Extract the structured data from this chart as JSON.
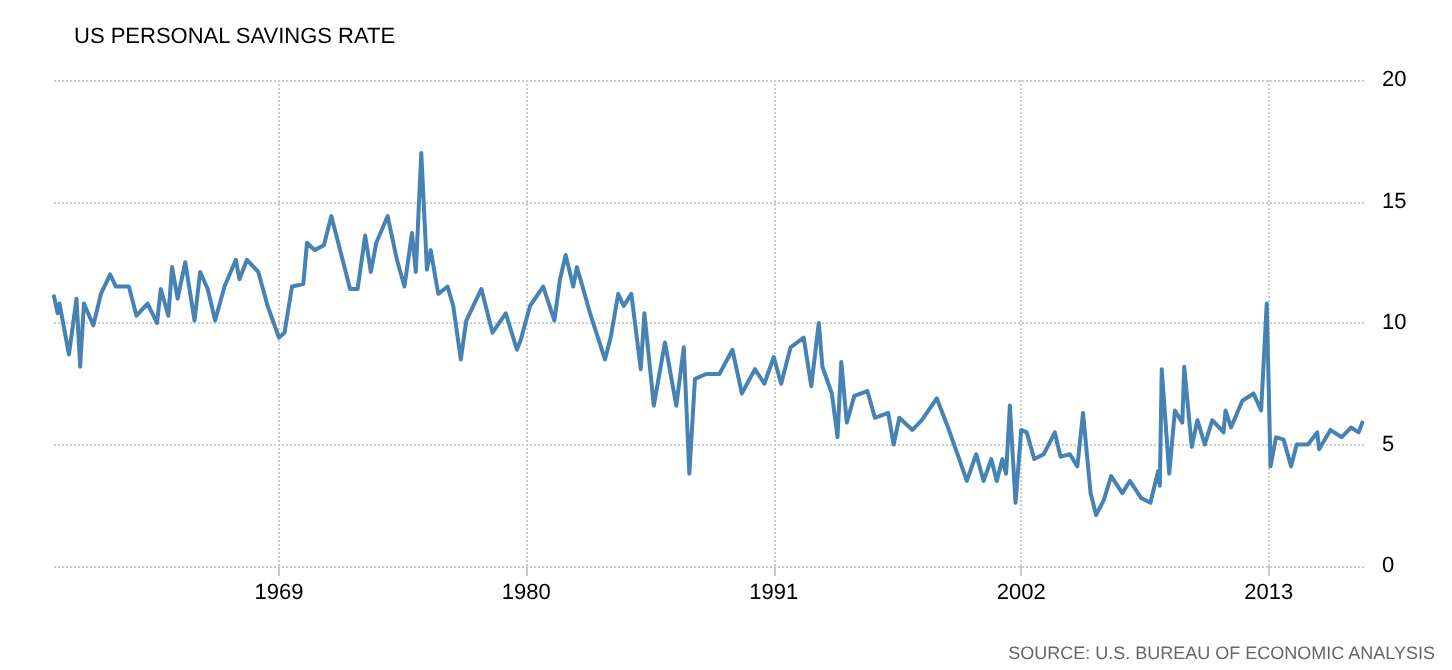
{
  "chart_data": {
    "type": "line",
    "title": "US PERSONAL SAVINGS RATE",
    "annotations": [
      "SOURCE: U.S. BUREAU OF ECONOMIC ANALYSIS"
    ],
    "x": [
      "1959-01",
      "1959-03",
      "1959-04",
      "1959-09",
      "1960-01",
      "1960-03",
      "1960-05",
      "1960-10",
      "1961-02",
      "1961-07",
      "1961-10",
      "1962-05",
      "1962-09",
      "1963-03",
      "1963-08",
      "1963-10",
      "1964-02",
      "1964-04",
      "1964-07",
      "1964-11",
      "1965-04",
      "1965-07",
      "1965-11",
      "1966-03",
      "1966-08",
      "1967-02",
      "1967-04",
      "1967-08",
      "1968-02",
      "1968-07",
      "1969-01",
      "1969-04",
      "1969-08",
      "1970-02",
      "1970-04",
      "1970-08",
      "1971-01",
      "1971-05",
      "1971-10",
      "1972-03",
      "1972-07",
      "1972-11",
      "1973-02",
      "1973-05",
      "1973-11",
      "1974-04",
      "1974-08",
      "1974-12",
      "1975-02",
      "1975-05",
      "1975-08",
      "1975-10",
      "1976-02",
      "1976-07",
      "1976-10",
      "1977-02",
      "1977-05",
      "1978-01",
      "1978-07",
      "1979-02",
      "1979-08",
      "1979-10",
      "1980-03",
      "1980-10",
      "1981-04",
      "1981-07",
      "1981-10",
      "1982-02",
      "1982-04",
      "1982-07",
      "1982-11",
      "1983-07",
      "1983-10",
      "1984-02",
      "1984-05",
      "1984-09",
      "1985-02",
      "1985-04",
      "1985-09",
      "1986-03",
      "1986-09",
      "1987-01",
      "1987-04",
      "1987-07",
      "1988-01",
      "1988-08",
      "1989-03",
      "1989-08",
      "1990-03",
      "1990-08",
      "1991-01",
      "1991-05",
      "1991-10",
      "1992-05",
      "1992-09",
      "1993-01",
      "1993-03",
      "1993-08",
      "1993-11",
      "1994-01",
      "1994-04",
      "1994-08",
      "1995-03",
      "1995-07",
      "1996-02",
      "1996-05",
      "1996-08",
      "1997-03",
      "1997-08",
      "1998-04",
      "1998-10",
      "1999-04",
      "1999-08",
      "2000-01",
      "2000-05",
      "2000-09",
      "2000-12",
      "2001-03",
      "2001-05",
      "2001-07",
      "2001-10",
      "2002-01",
      "2002-04",
      "2002-08",
      "2003-01",
      "2003-07",
      "2003-10",
      "2004-03",
      "2004-07",
      "2004-10",
      "2005-02",
      "2005-05",
      "2005-09",
      "2006-01",
      "2006-07",
      "2006-11",
      "2007-05",
      "2007-10",
      "2008-02",
      "2008-03",
      "2008-04",
      "2008-08",
      "2008-11",
      "2009-03",
      "2009-04",
      "2009-08",
      "2009-11",
      "2010-03",
      "2010-07",
      "2011-01",
      "2011-02",
      "2011-05",
      "2011-11",
      "2012-05",
      "2012-09",
      "2012-12",
      "2013-02",
      "2013-05",
      "2013-09",
      "2014-01",
      "2014-04",
      "2014-10",
      "2015-03",
      "2015-04",
      "2015-10",
      "2016-04",
      "2016-09",
      "2017-01",
      "2017-03"
    ],
    "series": [
      {
        "color": "#4682b4",
        "values": [
          11.1,
          10.4,
          10.8,
          8.7,
          11.0,
          8.2,
          10.8,
          9.9,
          11.2,
          12.0,
          11.5,
          11.5,
          10.3,
          10.8,
          10.0,
          11.4,
          10.3,
          12.3,
          11.0,
          12.5,
          10.1,
          12.1,
          11.4,
          10.1,
          11.5,
          12.6,
          11.8,
          12.6,
          12.1,
          10.7,
          9.4,
          9.6,
          11.5,
          11.6,
          13.3,
          13.0,
          13.2,
          14.4,
          12.9,
          11.4,
          11.4,
          13.6,
          12.1,
          13.3,
          14.4,
          12.6,
          11.5,
          13.7,
          12.1,
          17.0,
          12.2,
          13.0,
          11.2,
          11.5,
          10.7,
          8.5,
          10.1,
          11.4,
          9.6,
          10.4,
          8.9,
          9.3,
          10.7,
          11.5,
          10.1,
          11.8,
          12.8,
          11.5,
          12.3,
          11.5,
          10.4,
          8.5,
          9.4,
          11.2,
          10.7,
          11.2,
          8.1,
          10.4,
          6.6,
          9.2,
          6.6,
          9.0,
          3.8,
          7.7,
          7.9,
          7.9,
          8.9,
          7.1,
          8.1,
          7.5,
          8.6,
          7.5,
          9.0,
          9.4,
          7.4,
          10.0,
          8.2,
          7.1,
          5.3,
          8.4,
          5.9,
          7.0,
          7.2,
          6.1,
          6.3,
          5.0,
          6.1,
          5.6,
          6.0,
          6.9,
          5.7,
          4.4,
          3.5,
          4.6,
          3.5,
          4.4,
          3.5,
          4.4,
          3.8,
          6.6,
          2.6,
          5.6,
          5.5,
          4.4,
          4.6,
          5.5,
          4.5,
          4.6,
          4.1,
          6.3,
          3.0,
          2.1,
          2.7,
          3.7,
          3.0,
          3.5,
          2.8,
          2.6,
          3.9,
          3.3,
          8.1,
          3.8,
          6.4,
          5.9,
          8.2,
          4.9,
          6.0,
          5.0,
          6.0,
          5.5,
          6.4,
          5.7,
          6.8,
          7.1,
          6.4,
          10.8,
          4.1,
          5.3,
          5.2,
          4.1,
          5.0,
          5.0,
          5.5,
          4.8,
          5.6,
          5.3,
          5.7,
          5.5,
          5.9
        ]
      }
    ],
    "xlim": [
      "1959-01",
      "2017-05"
    ],
    "xticks": [
      "1969",
      "1980",
      "1991",
      "2002",
      "2013"
    ],
    "ylim": [
      0,
      20
    ],
    "yticks": [
      0,
      5,
      10,
      15,
      20
    ],
    "grid": true,
    "marker": "none",
    "line_style": "solid"
  }
}
